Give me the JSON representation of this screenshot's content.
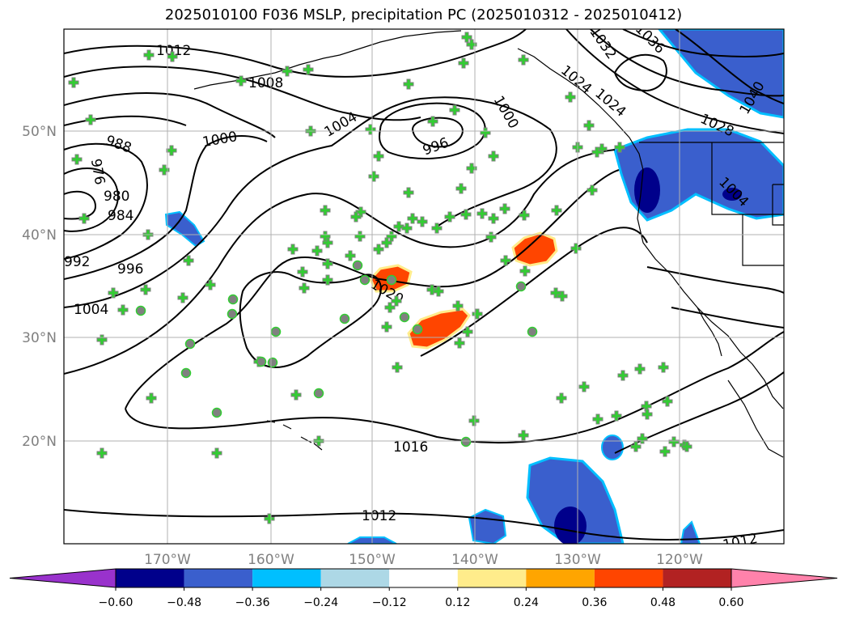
{
  "title": "2025010100 F036 MSLP, precipitation PC (2025010312 - 2025010412)",
  "longitude_labels": [
    "170°W",
    "160°W",
    "150°W",
    "140°W",
    "130°W",
    "120°W"
  ],
  "latitude_labels": [
    "50°N",
    "40°N",
    "30°N",
    "20°N"
  ],
  "isobar_labels": [
    "1012",
    "1008",
    "1004",
    "1000",
    "996",
    "992",
    "988",
    "984",
    "980",
    "976",
    "1020",
    "1016",
    "1012",
    "1012",
    "1036",
    "1032",
    "1040",
    "1028",
    "1024",
    "1004",
    "1000",
    "996",
    "1004",
    "1024"
  ],
  "colorbar": {
    "ticks": [
      "−0.60",
      "−0.48",
      "−0.36",
      "−0.24",
      "−0.12",
      "0.12",
      "0.24",
      "0.36",
      "0.48",
      "0.60"
    ],
    "colors": [
      "#9932cc",
      "#00008b",
      "#3a5fcd",
      "#00bfff",
      "#add8e6",
      "#ffffff",
      "#ffec8b",
      "#ffa500",
      "#ff4500",
      "#b22222",
      "#ff82ab"
    ]
  },
  "map_colors": {
    "negative_dark": "#00008b",
    "negative_mid": "#3a5fcd",
    "negative_light": "#00bfff",
    "positive_orange": "#ff4500",
    "positive_yellow": "#ffec8b",
    "marker_green": "#32cd32",
    "marker_gray": "#808080"
  }
}
